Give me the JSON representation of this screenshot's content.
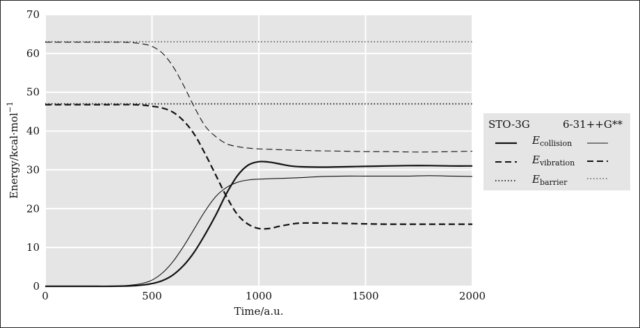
{
  "chart_data": {
    "type": "line",
    "xlabel": "Time/a.u.",
    "ylabel": "Energy/kcal·mol",
    "ylabel_sup": "−1",
    "xlim": [
      0,
      2000
    ],
    "ylim": [
      0,
      70
    ],
    "xticks": [
      0,
      500,
      1000,
      1500,
      2000
    ],
    "yticks": [
      0,
      10,
      20,
      30,
      40,
      50,
      60,
      70
    ],
    "grid": true,
    "legend": {
      "placement": "right",
      "col_headers": [
        "STO-3G",
        "6-31++G**"
      ],
      "rows": [
        {
          "symbol": "E",
          "subscript": "collision"
        },
        {
          "symbol": "E",
          "subscript": "vibration"
        },
        {
          "symbol": "E",
          "subscript": "barrier"
        }
      ]
    },
    "series": [
      {
        "basis": "STO-3G",
        "quantity": "collision",
        "style": "solid-thick",
        "x": [
          0,
          200,
          300,
          400,
          450,
          500,
          550,
          600,
          650,
          700,
          750,
          800,
          850,
          900,
          950,
          1000,
          1050,
          1100,
          1150,
          1200,
          1300,
          1400,
          1500,
          1600,
          1700,
          1800,
          1900,
          2000
        ],
        "y": [
          0,
          0,
          0,
          0.1,
          0.3,
          0.7,
          1.5,
          3,
          5.5,
          9,
          13.5,
          18.5,
          24,
          28.5,
          31.2,
          32.1,
          32,
          31.5,
          31,
          30.8,
          30.7,
          30.8,
          30.9,
          31,
          31.1,
          31.1,
          31,
          31
        ]
      },
      {
        "basis": "6-31++G**",
        "quantity": "collision",
        "style": "solid-thin",
        "x": [
          0,
          200,
          300,
          350,
          400,
          450,
          500,
          550,
          600,
          650,
          700,
          750,
          800,
          850,
          900,
          950,
          1000,
          1100,
          1200,
          1300,
          1400,
          1500,
          1600,
          1700,
          1800,
          1900,
          2000
        ],
        "y": [
          0,
          0,
          0,
          0.1,
          0.3,
          0.7,
          1.6,
          3.5,
          6.5,
          10.5,
          15,
          19.5,
          23.2,
          25.5,
          26.8,
          27.4,
          27.6,
          27.8,
          28,
          28.3,
          28.4,
          28.4,
          28.4,
          28.4,
          28.5,
          28.4,
          28.3
        ]
      },
      {
        "basis": "STO-3G",
        "quantity": "vibration",
        "style": "dashed-thick",
        "x": [
          0,
          200,
          300,
          400,
          450,
          500,
          550,
          600,
          650,
          700,
          750,
          800,
          850,
          900,
          950,
          1000,
          1050,
          1100,
          1150,
          1200,
          1300,
          1400,
          1500,
          1600,
          1700,
          1800,
          1900,
          2000
        ],
        "y": [
          46.8,
          46.8,
          46.8,
          46.8,
          46.7,
          46.4,
          45.9,
          44.8,
          42.5,
          39,
          34,
          28.5,
          23,
          18.5,
          16,
          14.9,
          14.9,
          15.5,
          16,
          16.3,
          16.3,
          16.2,
          16.1,
          16,
          16,
          16,
          16,
          16
        ]
      },
      {
        "basis": "6-31++G**",
        "quantity": "vibration",
        "style": "dashed-thin",
        "x": [
          0,
          200,
          300,
          350,
          400,
          450,
          500,
          550,
          600,
          650,
          700,
          750,
          800,
          850,
          900,
          950,
          1000,
          1050,
          1100,
          1200,
          1300,
          1400,
          1500,
          1600,
          1700,
          1800,
          1900,
          2000
        ],
        "y": [
          62.9,
          62.9,
          62.9,
          62.9,
          62.8,
          62.5,
          61.8,
          60,
          56.5,
          51.5,
          46,
          41.2,
          38.5,
          36.7,
          36,
          35.6,
          35.4,
          35.3,
          35.2,
          35,
          34.9,
          34.8,
          34.7,
          34.7,
          34.6,
          34.6,
          34.7,
          34.8
        ]
      },
      {
        "basis": "STO-3G",
        "quantity": "barrier",
        "style": "dotted-thick",
        "x": [
          0,
          2000
        ],
        "y": [
          47,
          47
        ]
      },
      {
        "basis": "6-31++G**",
        "quantity": "barrier",
        "style": "dotted-thin",
        "x": [
          0,
          2000
        ],
        "y": [
          63,
          63
        ]
      }
    ]
  }
}
